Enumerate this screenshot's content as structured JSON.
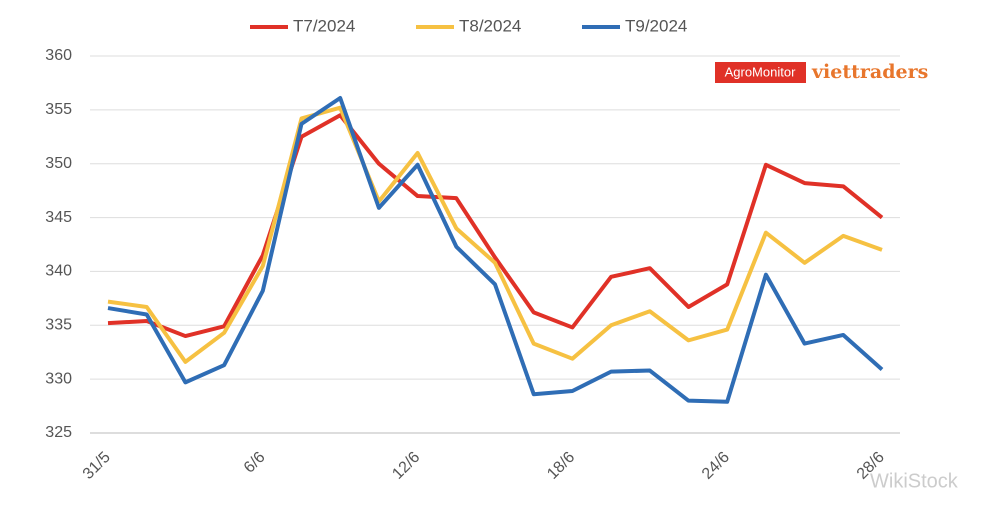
{
  "chart_data": {
    "type": "line",
    "categories": [
      "31/5",
      null,
      null,
      null,
      "6/6",
      null,
      null,
      null,
      "12/6",
      null,
      null,
      null,
      "18/6",
      null,
      null,
      null,
      "24/6",
      null,
      null,
      null,
      "28/6"
    ],
    "series": [
      {
        "name": "T7/2024",
        "color": "#e03127",
        "values": [
          335.2,
          335.4,
          334.0,
          334.9,
          341.5,
          352.5,
          354.5,
          350.0,
          347.0,
          346.8,
          341.3,
          336.2,
          334.8,
          339.5,
          340.3,
          336.7,
          338.8,
          349.9,
          348.2,
          347.9,
          345.0
        ]
      },
      {
        "name": "T8/2024",
        "color": "#f6c142",
        "values": [
          337.2,
          336.7,
          331.6,
          334.3,
          340.5,
          354.2,
          355.2,
          346.5,
          351.0,
          344.0,
          340.8,
          333.3,
          331.9,
          335.0,
          336.3,
          333.6,
          334.6,
          343.6,
          340.8,
          343.3,
          342.0
        ]
      },
      {
        "name": "T9/2024",
        "color": "#2f6db5",
        "values": [
          336.6,
          336.0,
          329.7,
          331.3,
          338.2,
          353.7,
          356.1,
          345.9,
          349.9,
          342.3,
          338.8,
          328.6,
          328.9,
          330.7,
          330.8,
          328.0,
          327.9,
          339.7,
          333.3,
          334.1,
          330.9
        ]
      }
    ],
    "ylim": [
      325,
      360
    ],
    "yticks": [
      325,
      330,
      335,
      340,
      345,
      350,
      355,
      360
    ],
    "grid": true,
    "legend": "top",
    "logo": [
      "AgroMonitor",
      "viettraders"
    ],
    "watermark": "WikiStock"
  }
}
